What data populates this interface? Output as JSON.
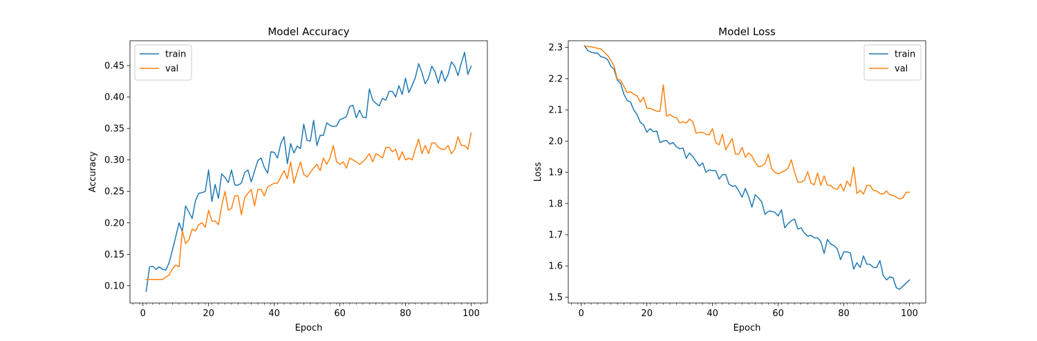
{
  "chart_data": [
    {
      "type": "line",
      "title": "Model Accuracy",
      "xlabel": "Epoch",
      "ylabel": "Accuracy",
      "xlim": [
        -3.95,
        104.95
      ],
      "ylim": [
        0.0725,
        0.4895
      ],
      "xticks": [
        0,
        20,
        40,
        60,
        80,
        100
      ],
      "xtick_labels": [
        "0",
        "20",
        "40",
        "60",
        "80",
        "100"
      ],
      "yticks": [
        0.1,
        0.15,
        0.2,
        0.25,
        0.3,
        0.35,
        0.4,
        0.45
      ],
      "ytick_labels": [
        "0.10",
        "0.15",
        "0.20",
        "0.25",
        "0.30",
        "0.35",
        "0.40",
        "0.45"
      ],
      "legend_position": "top-left",
      "grid": false,
      "series": [
        {
          "name": "train",
          "color": "#1f77b4",
          "x": [
            1,
            2,
            3,
            4,
            5,
            6,
            7,
            8,
            9,
            10,
            11,
            12,
            13,
            14,
            15,
            16,
            17,
            18,
            19,
            20,
            21,
            22,
            23,
            24,
            25,
            26,
            27,
            28,
            29,
            30,
            31,
            32,
            33,
            34,
            35,
            36,
            37,
            38,
            39,
            40,
            41,
            42,
            43,
            44,
            45,
            46,
            47,
            48,
            49,
            50,
            51,
            52,
            53,
            54,
            55,
            56,
            57,
            58,
            59,
            60,
            61,
            62,
            63,
            64,
            65,
            66,
            67,
            68,
            69,
            70,
            71,
            72,
            73,
            74,
            75,
            76,
            77,
            78,
            79,
            80,
            81,
            82,
            83,
            84,
            85,
            86,
            87,
            88,
            89,
            90,
            91,
            92,
            93,
            94,
            95,
            96,
            97,
            98,
            99,
            100
          ],
          "values": [
            0.091,
            0.13,
            0.131,
            0.126,
            0.13,
            0.126,
            0.125,
            0.137,
            0.157,
            0.178,
            0.2,
            0.186,
            0.227,
            0.217,
            0.207,
            0.235,
            0.247,
            0.248,
            0.25,
            0.284,
            0.234,
            0.261,
            0.239,
            0.278,
            0.272,
            0.264,
            0.284,
            0.26,
            0.26,
            0.263,
            0.28,
            0.284,
            0.265,
            0.282,
            0.299,
            0.303,
            0.288,
            0.279,
            0.313,
            0.312,
            0.303,
            0.326,
            0.337,
            0.294,
            0.326,
            0.311,
            0.322,
            0.318,
            0.357,
            0.331,
            0.33,
            0.363,
            0.323,
            0.339,
            0.339,
            0.359,
            0.355,
            0.353,
            0.354,
            0.364,
            0.366,
            0.369,
            0.385,
            0.387,
            0.367,
            0.379,
            0.368,
            0.367,
            0.413,
            0.395,
            0.39,
            0.386,
            0.398,
            0.395,
            0.409,
            0.409,
            0.4,
            0.418,
            0.404,
            0.43,
            0.407,
            0.418,
            0.431,
            0.453,
            0.439,
            0.421,
            0.43,
            0.449,
            0.44,
            0.422,
            0.442,
            0.425,
            0.436,
            0.456,
            0.449,
            0.434,
            0.454,
            0.471,
            0.436,
            0.449
          ]
        },
        {
          "name": "val",
          "color": "#ff7f0e",
          "x": [
            1,
            2,
            3,
            4,
            5,
            6,
            7,
            8,
            9,
            10,
            11,
            12,
            13,
            14,
            15,
            16,
            17,
            18,
            19,
            20,
            21,
            22,
            23,
            24,
            25,
            26,
            27,
            28,
            29,
            30,
            31,
            32,
            33,
            34,
            35,
            36,
            37,
            38,
            39,
            40,
            41,
            42,
            43,
            44,
            45,
            46,
            47,
            48,
            49,
            50,
            51,
            52,
            53,
            54,
            55,
            56,
            57,
            58,
            59,
            60,
            61,
            62,
            63,
            64,
            65,
            66,
            67,
            68,
            69,
            70,
            71,
            72,
            73,
            74,
            75,
            76,
            77,
            78,
            79,
            80,
            81,
            82,
            83,
            84,
            85,
            86,
            87,
            88,
            89,
            90,
            91,
            92,
            93,
            94,
            95,
            96,
            97,
            98,
            99,
            100
          ],
          "values": [
            0.11,
            0.11,
            0.11,
            0.11,
            0.11,
            0.11,
            0.114,
            0.117,
            0.127,
            0.133,
            0.13,
            0.187,
            0.167,
            0.173,
            0.19,
            0.187,
            0.197,
            0.2,
            0.193,
            0.22,
            0.203,
            0.203,
            0.197,
            0.227,
            0.25,
            0.22,
            0.223,
            0.243,
            0.243,
            0.213,
            0.24,
            0.247,
            0.253,
            0.227,
            0.253,
            0.253,
            0.243,
            0.257,
            0.26,
            0.263,
            0.263,
            0.273,
            0.283,
            0.27,
            0.297,
            0.263,
            0.28,
            0.297,
            0.277,
            0.273,
            0.28,
            0.287,
            0.293,
            0.283,
            0.303,
            0.293,
            0.303,
            0.323,
            0.297,
            0.293,
            0.297,
            0.287,
            0.303,
            0.3,
            0.297,
            0.293,
            0.297,
            0.303,
            0.31,
            0.297,
            0.31,
            0.307,
            0.303,
            0.32,
            0.32,
            0.313,
            0.317,
            0.3,
            0.313,
            0.3,
            0.303,
            0.3,
            0.317,
            0.333,
            0.31,
            0.323,
            0.31,
            0.327,
            0.327,
            0.32,
            0.317,
            0.317,
            0.323,
            0.31,
            0.317,
            0.337,
            0.323,
            0.323,
            0.317,
            0.343
          ]
        }
      ]
    },
    {
      "type": "line",
      "title": "Model Loss",
      "xlabel": "Epoch",
      "ylabel": "Loss",
      "xlim": [
        -3.95,
        104.95
      ],
      "ylim": [
        1.481,
        2.3215
      ],
      "xticks": [
        0,
        20,
        40,
        60,
        80,
        100
      ],
      "xtick_labels": [
        "0",
        "20",
        "40",
        "60",
        "80",
        "100"
      ],
      "yticks": [
        1.5,
        1.6,
        1.7,
        1.8,
        1.9,
        2.0,
        2.1,
        2.2,
        2.3
      ],
      "ytick_labels": [
        "1.5",
        "1.6",
        "1.7",
        "1.8",
        "1.9",
        "2.0",
        "2.1",
        "2.2",
        "2.3"
      ],
      "legend_position": "top-right",
      "grid": false,
      "series": [
        {
          "name": "train",
          "color": "#1f77b4",
          "x": [
            1,
            2,
            3,
            4,
            5,
            6,
            7,
            8,
            9,
            10,
            11,
            12,
            13,
            14,
            15,
            16,
            17,
            18,
            19,
            20,
            21,
            22,
            23,
            24,
            25,
            26,
            27,
            28,
            29,
            30,
            31,
            32,
            33,
            34,
            35,
            36,
            37,
            38,
            39,
            40,
            41,
            42,
            43,
            44,
            45,
            46,
            47,
            48,
            49,
            50,
            51,
            52,
            53,
            54,
            55,
            56,
            57,
            58,
            59,
            60,
            61,
            62,
            63,
            64,
            65,
            66,
            67,
            68,
            69,
            70,
            71,
            72,
            73,
            74,
            75,
            76,
            77,
            78,
            79,
            80,
            81,
            82,
            83,
            84,
            85,
            86,
            87,
            88,
            89,
            90,
            91,
            92,
            93,
            94,
            95,
            96,
            97,
            98,
            99,
            100
          ],
          "values": [
            2.305,
            2.29,
            2.285,
            2.282,
            2.282,
            2.27,
            2.268,
            2.262,
            2.24,
            2.23,
            2.195,
            2.185,
            2.15,
            2.13,
            2.125,
            2.1,
            2.085,
            2.06,
            2.052,
            2.028,
            2.04,
            2.03,
            2.032,
            1.995,
            2.0,
            2.002,
            1.99,
            1.995,
            1.982,
            1.975,
            1.978,
            1.945,
            1.962,
            1.95,
            1.935,
            1.92,
            1.93,
            1.9,
            1.908,
            1.905,
            1.905,
            1.878,
            1.892,
            1.893,
            1.862,
            1.855,
            1.857,
            1.84,
            1.82,
            1.848,
            1.822,
            1.788,
            1.828,
            1.818,
            1.805,
            1.765,
            1.775,
            1.775,
            1.772,
            1.76,
            1.78,
            1.722,
            1.735,
            1.745,
            1.75,
            1.718,
            1.722,
            1.705,
            1.695,
            1.698,
            1.69,
            1.69,
            1.678,
            1.64,
            1.685,
            1.67,
            1.665,
            1.655,
            1.62,
            1.645,
            1.645,
            1.642,
            1.59,
            1.61,
            1.595,
            1.632,
            1.606,
            1.605,
            1.595,
            1.595,
            1.617,
            1.57,
            1.555,
            1.565,
            1.562,
            1.53,
            1.525,
            1.535,
            1.545,
            1.555
          ]
        },
        {
          "name": "val",
          "color": "#ff7f0e",
          "x": [
            1,
            2,
            3,
            4,
            5,
            6,
            7,
            8,
            9,
            10,
            11,
            12,
            13,
            14,
            15,
            16,
            17,
            18,
            19,
            20,
            21,
            22,
            23,
            24,
            25,
            26,
            27,
            28,
            29,
            30,
            31,
            32,
            33,
            34,
            35,
            36,
            37,
            38,
            39,
            40,
            41,
            42,
            43,
            44,
            45,
            46,
            47,
            48,
            49,
            50,
            51,
            52,
            53,
            54,
            55,
            56,
            57,
            58,
            59,
            60,
            61,
            62,
            63,
            64,
            65,
            66,
            67,
            68,
            69,
            70,
            71,
            72,
            73,
            74,
            75,
            76,
            77,
            78,
            79,
            80,
            81,
            82,
            83,
            84,
            85,
            86,
            87,
            88,
            89,
            90,
            91,
            92,
            93,
            94,
            95,
            96,
            97,
            98,
            99,
            100
          ],
          "values": [
            2.305,
            2.303,
            2.302,
            2.3,
            2.297,
            2.295,
            2.285,
            2.275,
            2.26,
            2.24,
            2.198,
            2.195,
            2.175,
            2.155,
            2.158,
            2.15,
            2.145,
            2.125,
            2.14,
            2.105,
            2.105,
            2.1,
            2.096,
            2.095,
            2.18,
            2.08,
            2.085,
            2.078,
            2.075,
            2.058,
            2.062,
            2.058,
            2.07,
            2.062,
            2.025,
            2.028,
            2.028,
            2.022,
            2.02,
            2.04,
            1.995,
            1.988,
            2.022,
            1.972,
            1.99,
            2.008,
            1.958,
            1.958,
            1.98,
            1.948,
            1.962,
            1.952,
            1.932,
            1.918,
            1.92,
            1.928,
            1.958,
            1.912,
            1.9,
            1.895,
            1.9,
            1.905,
            1.912,
            1.94,
            1.9,
            1.868,
            1.868,
            1.875,
            1.902,
            1.865,
            1.86,
            1.898,
            1.858,
            1.888,
            1.858,
            1.858,
            1.848,
            1.845,
            1.862,
            1.84,
            1.872,
            1.855,
            1.917,
            1.832,
            1.842,
            1.83,
            1.858,
            1.858,
            1.842,
            1.84,
            1.832,
            1.83,
            1.84,
            1.828,
            1.826,
            1.82,
            1.815,
            1.818,
            1.836,
            1.836
          ]
        }
      ]
    }
  ]
}
